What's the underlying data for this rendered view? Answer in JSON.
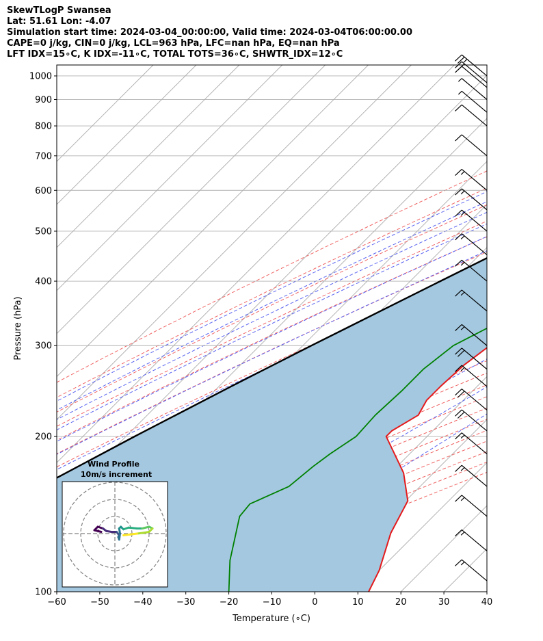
{
  "header": {
    "line1": "SkewTLogP Swansea",
    "line2": "Lat: 51.61   Lon: -4.07",
    "line3": "Simulation start time: 2024-03-04_00:00:00, Valid time: 2024-03-04T06:00:00.00",
    "line4": "CAPE=0 j/kg, CIN=0 j/kg, LCL=963 hPa, LFC=nan hPa, EQ=nan hPa",
    "line5": "LFT IDX=15∘C, K IDX=-11∘C, TOTAL TOTS=36∘C, SHWTR_IDX=12∘C"
  },
  "chart_data": {
    "type": "line",
    "title": "SkewTLogP Swansea",
    "xlabel": "Temperature (∘C)",
    "ylabel": "Pressure (hPa)",
    "xlim": [
      -60,
      40
    ],
    "ylim": [
      1050,
      100
    ],
    "x_ticks": [
      "−60",
      "−50",
      "−40",
      "−30",
      "−20",
      "−10",
      "0",
      "10",
      "20",
      "30",
      "40"
    ],
    "y_ticks": [
      "100",
      "200",
      "300",
      "400",
      "500",
      "600",
      "700",
      "800",
      "900",
      "1000"
    ],
    "series": [
      {
        "color": "#e41a1c",
        "points": [
          [
            1000,
            6.0
          ],
          [
            980,
            5.5
          ],
          [
            950,
            5.0
          ],
          [
            925,
            4.5
          ],
          [
            900,
            4.0
          ],
          [
            850,
            3.5
          ],
          [
            800,
            3.0
          ],
          [
            750,
            1.5
          ],
          [
            700,
            0.0
          ],
          [
            650,
            0.0
          ],
          [
            600,
            1.5
          ],
          [
            560,
            2.0
          ],
          [
            500,
            -1.0
          ],
          [
            450,
            -4.0
          ],
          [
            400,
            -8.0
          ],
          [
            350,
            -12.0
          ],
          [
            310,
            -16.0
          ],
          [
            275,
            -18.0
          ],
          [
            250,
            -18.5
          ],
          [
            235,
            -18.5
          ],
          [
            220,
            -17.0
          ],
          [
            205,
            -19.5
          ],
          [
            200,
            -19.5
          ],
          [
            185,
            -13.5
          ],
          [
            170,
            -7.0
          ],
          [
            150,
            0.5
          ],
          [
            130,
            4.0
          ],
          [
            110,
            10.0
          ],
          [
            100,
            12.5
          ]
        ]
      },
      {
        "color": "#008000",
        "points": [
          [
            1000,
            3.0
          ],
          [
            980,
            3.0
          ],
          [
            950,
            4.0
          ],
          [
            925,
            4.0
          ],
          [
            900,
            2.0
          ],
          [
            850,
            -6.0
          ],
          [
            800,
            -16.0
          ],
          [
            750,
            -27.0
          ],
          [
            725,
            -32.0
          ],
          [
            700,
            -25.0
          ],
          [
            650,
            -12.0
          ],
          [
            600,
            -1.0
          ],
          [
            550,
            0.0
          ],
          [
            500,
            -3.0
          ],
          [
            450,
            -7.0
          ],
          [
            400,
            -12.0
          ],
          [
            350,
            -17.5
          ],
          [
            300,
            -25.0
          ],
          [
            270,
            -26.5
          ],
          [
            245,
            -26.5
          ],
          [
            220,
            -27.0
          ],
          [
            200,
            -26.5
          ],
          [
            185,
            -28.5
          ],
          [
            175,
            -29.5
          ],
          [
            160,
            -30.5
          ],
          [
            148,
            -35.5
          ],
          [
            140,
            -35.0
          ],
          [
            115,
            -27.0
          ],
          [
            100,
            -20.0
          ]
        ]
      },
      {
        "color": "#000000",
        "points": [
          [
            1000,
            5.4
          ],
          [
            963,
            3.8
          ],
          [
            900,
            -0.5
          ],
          [
            850,
            -3.6
          ],
          [
            800,
            -6.7
          ],
          [
            750,
            -10.0
          ],
          [
            700,
            -13.6
          ],
          [
            650,
            -17.4
          ],
          [
            600,
            -21.6
          ],
          [
            550,
            -26.2
          ],
          [
            500,
            -31.2
          ],
          [
            450,
            -36.8
          ],
          [
            400,
            -43.0
          ],
          [
            350,
            -50.0
          ],
          [
            300,
            -58.0
          ],
          [
            250,
            -67.2
          ],
          [
            200,
            -78.0
          ],
          [
            150,
            -91.2
          ],
          [
            120,
            -101.3
          ],
          [
            100,
            -109.0
          ]
        ]
      }
    ],
    "shading": "between parcel (black) and environment (red)",
    "background_lines": [
      "isotherms (grey)",
      "dry adiabats (red dashed)",
      "moist adiabats (blue dashed)",
      "mixing ratio (purple dashed)"
    ],
    "wind_barbs": [
      {
        "p": 1000,
        "wspd_kt": 25
      },
      {
        "p": 970,
        "wspd_kt": 20
      },
      {
        "p": 950,
        "wspd_kt": 10
      },
      {
        "p": 900,
        "wspd_kt": 5
      },
      {
        "p": 850,
        "wspd_kt": 5
      },
      {
        "p": 800,
        "wspd_kt": 10
      },
      {
        "p": 700,
        "wspd_kt": 10
      },
      {
        "p": 600,
        "wspd_kt": 15
      },
      {
        "p": 550,
        "wspd_kt": 15
      },
      {
        "p": 500,
        "wspd_kt": 15
      },
      {
        "p": 450,
        "wspd_kt": 15
      },
      {
        "p": 400,
        "wspd_kt": 15
      },
      {
        "p": 350,
        "wspd_kt": 15
      },
      {
        "p": 300,
        "wspd_kt": 15
      },
      {
        "p": 270,
        "wspd_kt": 20
      },
      {
        "p": 250,
        "wspd_kt": 15
      },
      {
        "p": 225,
        "wspd_kt": 20
      },
      {
        "p": 205,
        "wspd_kt": 20
      },
      {
        "p": 185,
        "wspd_kt": 15
      },
      {
        "p": 160,
        "wspd_kt": 15
      },
      {
        "p": 140,
        "wspd_kt": 15
      },
      {
        "p": 120,
        "wspd_kt": 15
      },
      {
        "p": 105,
        "wspd_kt": 15
      }
    ],
    "inset": {
      "title": "Wind Profile",
      "subtitle": "10m/s increment",
      "rings_ms": [
        10,
        20,
        30
      ],
      "hodograph_uv": [
        [
          -8,
          1
        ],
        [
          -12,
          2
        ],
        [
          -10,
          4
        ],
        [
          -7,
          3
        ],
        [
          -5,
          1.5
        ],
        [
          -2,
          1
        ],
        [
          1,
          1
        ],
        [
          2.5,
          -1
        ],
        [
          2,
          -2
        ],
        [
          2.5,
          -3.5
        ],
        [
          3,
          0
        ],
        [
          2.5,
          3
        ],
        [
          3.5,
          4
        ],
        [
          5,
          2.5
        ],
        [
          8,
          3.5
        ],
        [
          13,
          3
        ],
        [
          16,
          3
        ],
        [
          20,
          4
        ],
        [
          22,
          3
        ],
        [
          20,
          1
        ],
        [
          17,
          0.5
        ],
        [
          13,
          0
        ],
        [
          9,
          -0.5
        ],
        [
          5,
          -1
        ]
      ]
    }
  }
}
